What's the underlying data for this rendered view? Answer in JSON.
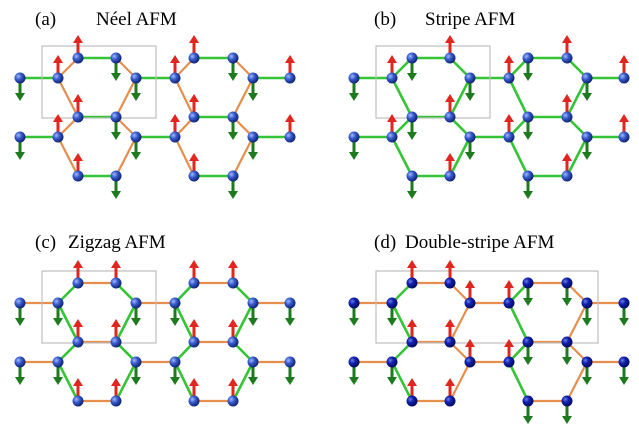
{
  "panels": [
    {
      "label": "(a)",
      "name": "Néel AFM",
      "config": "neel"
    },
    {
      "label": "(b)",
      "name": "Stripe AFM",
      "config": "stripe"
    },
    {
      "label": "(c)",
      "name": "Zigzag AFM",
      "config": "zigzag"
    },
    {
      "label": "(d)",
      "name": "Double-stripe AFM",
      "config": "double-stripe"
    }
  ],
  "colors": {
    "spin_up": "#e0261e",
    "spin_down": "#1e7a1e",
    "atom": "#2a4fc0",
    "ferro_bond": "#e58e4e",
    "afm_bond": "#35c435",
    "cell_box": "#bdbdbd"
  }
}
